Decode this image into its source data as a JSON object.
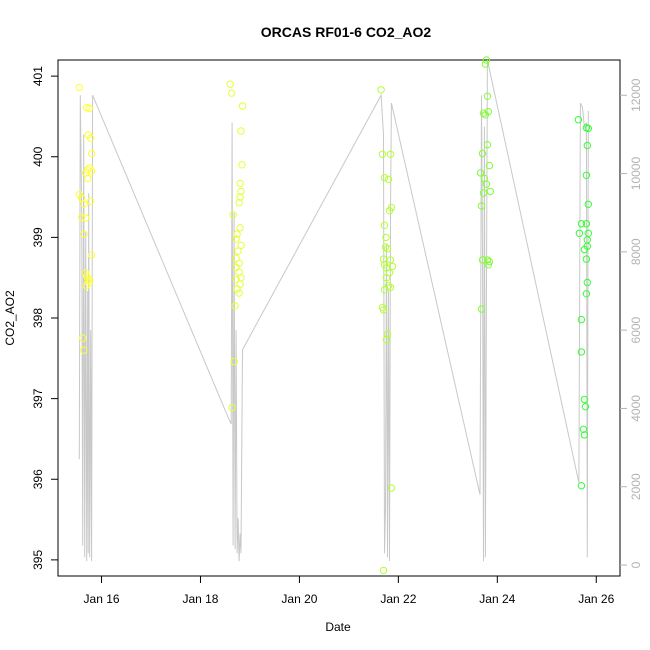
{
  "chart_data": {
    "type": "scatter",
    "title": "ORCAS RF01-6 CO2_AO2",
    "xlabel": "Date",
    "ylabel": "CO2_AO2",
    "x_ticks": [
      "Jan 16",
      "Jan 18",
      "Jan 20",
      "Jan 22",
      "Jan 24",
      "Jan 26"
    ],
    "x_tick_days": [
      16,
      18,
      20,
      22,
      24,
      26
    ],
    "xlim": [
      15.12,
      26.48
    ],
    "ylim": [
      394.8,
      401.2
    ],
    "y_ticks": [
      395,
      396,
      397,
      398,
      399,
      400,
      401
    ],
    "y2_ticks": [
      0,
      2000,
      4000,
      6000,
      8000,
      10000,
      12000
    ],
    "y2lim": [
      -280,
      12900
    ],
    "grid": false,
    "legend": "none",
    "colors": {
      "altitude_line": "#c8c8c8",
      "flight_colors": [
        "#ffff33",
        "#e6ff33",
        "#b3ff33",
        "#80ff33",
        "#33ff33"
      ]
    },
    "series": [
      {
        "values": [
          [
            15.55,
            400.86
          ],
          [
            15.55,
            399.53
          ],
          [
            15.6,
            399.49
          ],
          [
            15.65,
            399.41
          ],
          [
            15.6,
            399.25
          ],
          [
            15.68,
            399.24
          ],
          [
            15.65,
            399.04
          ],
          [
            15.62,
            397.75
          ],
          [
            15.64,
            397.6
          ],
          [
            15.7,
            400.61
          ],
          [
            15.75,
            400.6
          ],
          [
            15.73,
            400.27
          ],
          [
            15.78,
            400.23
          ],
          [
            15.8,
            400.04
          ],
          [
            15.72,
            399.84
          ],
          [
            15.76,
            399.86
          ],
          [
            15.8,
            399.82
          ],
          [
            15.68,
            399.8
          ],
          [
            15.72,
            399.73
          ],
          [
            15.78,
            399.45
          ],
          [
            15.8,
            398.78
          ],
          [
            15.68,
            398.56
          ],
          [
            15.72,
            398.48
          ],
          [
            15.76,
            398.47
          ],
          [
            15.69,
            398.4
          ],
          [
            15.74,
            398.43
          ],
          [
            15.7,
            398.52
          ]
        ]
      },
      {
        "values": [
          [
            18.6,
            400.9
          ],
          [
            18.63,
            400.79
          ],
          [
            18.85,
            400.63
          ],
          [
            18.82,
            400.32
          ],
          [
            18.84,
            399.9
          ],
          [
            18.8,
            399.67
          ],
          [
            18.82,
            399.57
          ],
          [
            18.8,
            399.5
          ],
          [
            18.78,
            399.43
          ],
          [
            18.66,
            399.28
          ],
          [
            18.8,
            399.12
          ],
          [
            18.74,
            399.04
          ],
          [
            18.72,
            398.98
          ],
          [
            18.82,
            398.9
          ],
          [
            18.76,
            398.83
          ],
          [
            18.72,
            398.74
          ],
          [
            18.78,
            398.68
          ],
          [
            18.72,
            398.63
          ],
          [
            18.78,
            398.57
          ],
          [
            18.72,
            398.48
          ],
          [
            18.8,
            398.42
          ],
          [
            18.74,
            398.36
          ],
          [
            18.78,
            398.31
          ],
          [
            18.7,
            398.15
          ],
          [
            18.68,
            397.46
          ],
          [
            18.64,
            396.89
          ],
          [
            18.82,
            398.5
          ]
        ]
      },
      {
        "values": [
          [
            21.65,
            400.83
          ],
          [
            21.68,
            400.03
          ],
          [
            21.84,
            400.03
          ],
          [
            21.72,
            399.74
          ],
          [
            21.8,
            399.72
          ],
          [
            21.86,
            399.37
          ],
          [
            21.82,
            399.33
          ],
          [
            21.72,
            399.15
          ],
          [
            21.75,
            399.0
          ],
          [
            21.74,
            398.88
          ],
          [
            21.78,
            398.86
          ],
          [
            21.7,
            398.73
          ],
          [
            21.84,
            398.72
          ],
          [
            21.72,
            398.66
          ],
          [
            21.88,
            398.64
          ],
          [
            21.76,
            398.62
          ],
          [
            21.82,
            398.56
          ],
          [
            21.76,
            398.5
          ],
          [
            21.8,
            398.4
          ],
          [
            21.84,
            398.38
          ],
          [
            21.72,
            398.35
          ],
          [
            21.68,
            398.13
          ],
          [
            21.7,
            398.1
          ],
          [
            21.78,
            397.8
          ],
          [
            21.76,
            397.73
          ],
          [
            21.86,
            395.89
          ],
          [
            21.7,
            394.87
          ]
        ]
      },
      {
        "values": [
          [
            23.78,
            401.2
          ],
          [
            23.76,
            401.15
          ],
          [
            23.8,
            400.75
          ],
          [
            23.72,
            400.54
          ],
          [
            23.76,
            400.52
          ],
          [
            23.82,
            400.56
          ],
          [
            23.8,
            400.15
          ],
          [
            23.7,
            400.04
          ],
          [
            23.84,
            399.89
          ],
          [
            23.66,
            399.8
          ],
          [
            23.74,
            399.73
          ],
          [
            23.78,
            399.66
          ],
          [
            23.72,
            399.55
          ],
          [
            23.86,
            399.57
          ],
          [
            23.68,
            399.39
          ],
          [
            23.7,
            398.72
          ],
          [
            23.8,
            398.72
          ],
          [
            23.84,
            398.7
          ],
          [
            23.82,
            398.66
          ],
          [
            23.68,
            398.11
          ]
        ]
      },
      {
        "values": [
          [
            25.64,
            400.46
          ],
          [
            25.8,
            400.36
          ],
          [
            25.84,
            400.35
          ],
          [
            25.82,
            400.14
          ],
          [
            25.8,
            399.77
          ],
          [
            25.84,
            399.41
          ],
          [
            25.7,
            399.17
          ],
          [
            25.8,
            399.17
          ],
          [
            25.66,
            399.05
          ],
          [
            25.84,
            399.05
          ],
          [
            25.82,
            398.97
          ],
          [
            25.82,
            398.89
          ],
          [
            25.76,
            398.85
          ],
          [
            25.8,
            398.73
          ],
          [
            25.82,
            398.44
          ],
          [
            25.8,
            398.3
          ],
          [
            25.7,
            397.98
          ],
          [
            25.7,
            397.58
          ],
          [
            25.76,
            396.99
          ],
          [
            25.78,
            396.9
          ],
          [
            25.74,
            396.62
          ],
          [
            25.76,
            396.55
          ],
          [
            25.7,
            395.92
          ]
        ]
      }
    ],
    "altitude_series": {
      "values": [
        [
          15.55,
          2700
        ],
        [
          15.57,
          12000
        ],
        [
          15.6,
          9000
        ],
        [
          15.62,
          500
        ],
        [
          15.64,
          11000
        ],
        [
          15.66,
          200
        ],
        [
          15.68,
          8500
        ],
        [
          15.7,
          100
        ],
        [
          15.72,
          7000
        ],
        [
          15.73,
          300
        ],
        [
          15.74,
          9500
        ],
        [
          15.76,
          200
        ],
        [
          15.78,
          6000
        ],
        [
          15.8,
          100
        ],
        [
          15.82,
          12000
        ],
        [
          18.55,
          3800
        ],
        [
          18.62,
          3600
        ],
        [
          18.64,
          11300
        ],
        [
          18.66,
          500
        ],
        [
          18.68,
          9000
        ],
        [
          18.7,
          400
        ],
        [
          18.72,
          6000
        ],
        [
          18.74,
          300
        ],
        [
          18.76,
          1200
        ],
        [
          18.78,
          100
        ],
        [
          18.8,
          800
        ],
        [
          18.82,
          300
        ],
        [
          18.85,
          5500
        ],
        [
          21.65,
          12000
        ],
        [
          21.7,
          11000
        ],
        [
          21.72,
          300
        ],
        [
          21.74,
          1500
        ],
        [
          21.76,
          8200
        ],
        [
          21.78,
          200
        ],
        [
          21.8,
          7000
        ],
        [
          21.82,
          100
        ],
        [
          21.84,
          9000
        ],
        [
          21.86,
          11800
        ],
        [
          23.65,
          1800
        ],
        [
          23.68,
          12000
        ],
        [
          23.7,
          8000
        ],
        [
          23.72,
          100
        ],
        [
          23.74,
          11200
        ],
        [
          23.76,
          200
        ],
        [
          23.8,
          12900
        ],
        [
          25.65,
          2100
        ],
        [
          25.68,
          11800
        ],
        [
          25.72,
          11700
        ],
        [
          25.76,
          11200
        ],
        [
          25.8,
          11300
        ],
        [
          25.82,
          200
        ],
        [
          25.84,
          11600
        ]
      ]
    }
  }
}
